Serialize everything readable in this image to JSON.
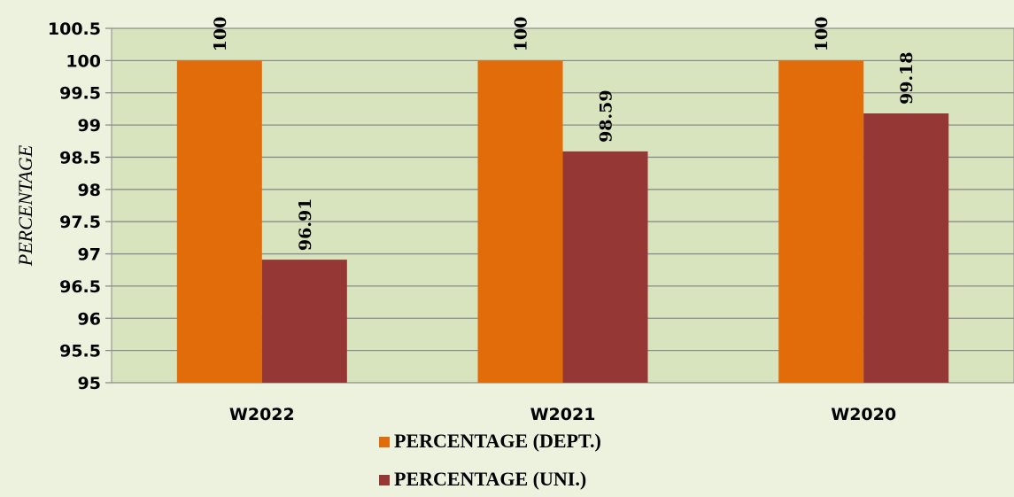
{
  "chart_data": {
    "type": "bar",
    "categories": [
      "W2022",
      "W2021",
      "W2020"
    ],
    "series": [
      {
        "name": "PERCENTAGE (DEPT.)",
        "values": [
          100,
          100,
          100
        ],
        "color": "#e36c0a"
      },
      {
        "name": "PERCENTAGE (UNI.)",
        "values": [
          96.91,
          98.59,
          99.18
        ],
        "color": "#953735"
      }
    ],
    "data_labels": [
      [
        "100",
        "100",
        "100"
      ],
      [
        "96.91",
        "98.59",
        "99.18"
      ]
    ],
    "title": "",
    "xlabel": "",
    "ylabel": "PERCENTAGE",
    "ylim": [
      95,
      100.5
    ],
    "yticks": [
      "95",
      "95.5",
      "96",
      "96.5",
      "97",
      "97.5",
      "98",
      "98.5",
      "99",
      "99.5",
      "100",
      "100.5"
    ],
    "grid": true,
    "legend_position": "bottom",
    "plot_background": "#d7e4bd",
    "page_background": "#edf2df"
  }
}
